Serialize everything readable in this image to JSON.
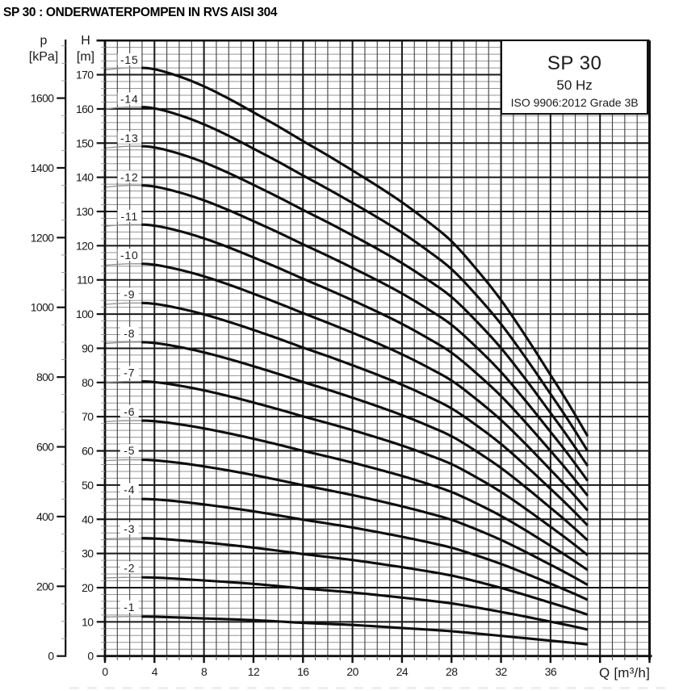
{
  "title": "SP 30 : ONDERWATERPOMPEN IN RVS AISI 304",
  "legend": {
    "model": "SP 30",
    "frequency": "50 Hz",
    "standard": "ISO 9906:2012 Grade 3B"
  },
  "axes": {
    "pressure": {
      "name": "p",
      "unit": "[kPa]",
      "tick_labels": [
        "0",
        "200",
        "400",
        "600",
        "800",
        "1000",
        "1200",
        "1400",
        "1600"
      ],
      "major_step_kpa": 200,
      "minor_step_kpa": 50,
      "max_kpa": 1750
    },
    "head": {
      "name": "H",
      "unit": "[m]",
      "tick_labels": [
        "0",
        "10",
        "20",
        "30",
        "40",
        "50",
        "60",
        "70",
        "80",
        "90",
        "100",
        "110",
        "120",
        "130",
        "140",
        "150",
        "160",
        "170"
      ],
      "major_step_m": 10,
      "minor_step_m": 2,
      "range_m": [
        0,
        180
      ]
    },
    "flow": {
      "name": "Q",
      "unit": "[m³/h]",
      "tick_labels": [
        "0",
        "4",
        "8",
        "12",
        "16",
        "20",
        "24",
        "28",
        "32",
        "36"
      ],
      "major_step": 4,
      "minor_step": 1,
      "range": [
        0,
        44
      ]
    }
  },
  "chart_data": {
    "type": "line",
    "title": "SP 30 pump performance curves, 50 Hz",
    "xlabel": "Q [m³/h]",
    "ylabel_left_outer": "p [kPa]",
    "ylabel_left_inner": "H [m]",
    "xlim": [
      0,
      44
    ],
    "ylim": [
      0,
      180
    ],
    "grid": "minor+major",
    "legend_position": "top-right box",
    "x": [
      0,
      1,
      2,
      3,
      4,
      6,
      8,
      10,
      12,
      14,
      16,
      18,
      20,
      22,
      24,
      26,
      28,
      30,
      32,
      34,
      36,
      37,
      38,
      39
    ],
    "series": [
      {
        "name": "-1",
        "stages": 1,
        "values": [
          11.43,
          11.5,
          11.55,
          11.55,
          11.5,
          11.27,
          11.0,
          10.76,
          10.5,
          10.12,
          9.7,
          9.4,
          9.1,
          8.66,
          8.2,
          7.75,
          7.25,
          6.6,
          5.9,
          5.2,
          4.5,
          4.15,
          3.8,
          3.4
        ]
      },
      {
        "name": "-2",
        "stages": 2,
        "values": [
          22.86,
          22.95,
          23.01,
          23.01,
          22.94,
          22.57,
          22.11,
          21.63,
          21.11,
          20.46,
          19.76,
          19.19,
          18.59,
          17.86,
          17.09,
          16.29,
          15.4,
          14.21,
          12.91,
          11.51,
          10.05,
          9.32,
          8.56,
          7.75
        ]
      },
      {
        "name": "-3",
        "stages": 3,
        "values": [
          34.28,
          34.4,
          34.47,
          34.47,
          34.37,
          33.87,
          33.23,
          32.51,
          31.71,
          30.8,
          29.83,
          28.97,
          28.09,
          27.07,
          25.99,
          24.83,
          23.54,
          21.83,
          19.93,
          17.81,
          15.6,
          14.49,
          13.33,
          12.1
        ]
      },
      {
        "name": "-4",
        "stages": 4,
        "values": [
          45.71,
          45.85,
          45.93,
          45.93,
          45.81,
          45.18,
          44.34,
          43.38,
          42.32,
          41.14,
          39.89,
          38.76,
          37.58,
          36.27,
          34.88,
          33.37,
          31.69,
          29.44,
          26.94,
          24.12,
          21.15,
          19.65,
          18.09,
          16.45
        ]
      },
      {
        "name": "-5",
        "stages": 5,
        "values": [
          57.14,
          57.3,
          57.39,
          57.39,
          57.24,
          56.48,
          55.46,
          54.26,
          52.93,
          51.49,
          49.96,
          48.54,
          47.07,
          45.47,
          43.77,
          41.91,
          39.84,
          37.06,
          33.96,
          30.43,
          26.7,
          24.82,
          22.86,
          20.8
        ]
      },
      {
        "name": "-6",
        "stages": 6,
        "values": [
          68.56,
          68.75,
          68.85,
          68.85,
          68.68,
          67.78,
          66.57,
          65.13,
          63.54,
          61.83,
          60.02,
          58.33,
          56.56,
          54.67,
          52.66,
          50.45,
          47.98,
          44.67,
          40.97,
          36.74,
          32.25,
          29.99,
          27.62,
          25.15
        ]
      },
      {
        "name": "-7",
        "stages": 7,
        "values": [
          79.99,
          80.2,
          80.31,
          80.31,
          80.11,
          79.08,
          77.69,
          76.01,
          74.14,
          72.17,
          70.09,
          68.11,
          66.06,
          63.88,
          61.56,
          58.99,
          56.13,
          52.29,
          47.99,
          43.04,
          37.8,
          35.16,
          32.39,
          29.5
        ]
      },
      {
        "name": "-8",
        "stages": 8,
        "values": [
          91.42,
          91.65,
          91.78,
          91.78,
          91.55,
          90.39,
          88.8,
          86.88,
          84.75,
          82.51,
          80.15,
          77.9,
          75.55,
          73.08,
          70.45,
          67.53,
          64.28,
          59.9,
          55.0,
          49.35,
          43.35,
          40.33,
          37.15,
          33.85
        ]
      },
      {
        "name": "-9",
        "stages": 9,
        "values": [
          102.84,
          103.1,
          103.24,
          103.24,
          102.99,
          101.69,
          99.91,
          97.75,
          95.36,
          92.85,
          90.21,
          87.69,
          85.04,
          82.28,
          79.34,
          76.06,
          72.42,
          67.51,
          62.01,
          55.66,
          48.9,
          45.49,
          41.91,
          38.2
        ]
      },
      {
        "name": "-10",
        "stages": 10,
        "values": [
          114.27,
          114.55,
          114.7,
          114.7,
          114.42,
          112.99,
          111.03,
          108.63,
          105.96,
          103.19,
          100.28,
          97.47,
          94.54,
          91.49,
          88.24,
          84.6,
          80.57,
          75.13,
          69.03,
          61.96,
          54.45,
          50.66,
          46.68,
          42.55
        ]
      },
      {
        "name": "-11",
        "stages": 11,
        "values": [
          125.69,
          126.0,
          126.16,
          126.16,
          125.86,
          124.29,
          122.14,
          119.5,
          116.57,
          113.53,
          110.34,
          107.26,
          104.03,
          100.69,
          97.13,
          93.14,
          88.71,
          82.74,
          76.04,
          68.27,
          60.0,
          55.83,
          51.44,
          46.9
        ]
      },
      {
        "name": "-12",
        "stages": 12,
        "values": [
          137.12,
          137.45,
          137.62,
          137.62,
          137.29,
          135.59,
          133.26,
          130.38,
          127.18,
          123.88,
          120.41,
          117.04,
          113.52,
          109.89,
          106.02,
          101.68,
          96.86,
          90.36,
          83.06,
          74.58,
          65.55,
          61.0,
          56.21,
          51.25
        ]
      },
      {
        "name": "-13",
        "stages": 13,
        "values": [
          148.55,
          148.9,
          149.08,
          149.08,
          148.73,
          146.9,
          144.37,
          141.25,
          137.79,
          134.22,
          130.47,
          126.83,
          123.01,
          119.09,
          114.91,
          110.22,
          105.01,
          97.97,
          90.07,
          80.89,
          71.1,
          66.16,
          60.97,
          55.6
        ]
      },
      {
        "name": "-14",
        "stages": 14,
        "values": [
          159.97,
          160.35,
          160.54,
          160.54,
          160.16,
          158.2,
          155.49,
          152.13,
          148.39,
          144.56,
          140.54,
          136.61,
          132.51,
          128.3,
          123.81,
          118.76,
          113.15,
          105.59,
          97.09,
          87.19,
          76.65,
          71.33,
          65.74,
          59.95
        ]
      },
      {
        "name": "-15",
        "stages": 15,
        "values": [
          171.4,
          171.8,
          172.0,
          172.0,
          171.6,
          169.5,
          166.6,
          163.0,
          159.0,
          154.9,
          150.6,
          146.4,
          142.0,
          137.5,
          132.7,
          127.3,
          121.3,
          113.2,
          104.1,
          93.5,
          82.2,
          76.5,
          70.5,
          64.3
        ]
      }
    ],
    "curve_thick_range_q": [
      2.95,
      39.0
    ],
    "curve_labels": [
      "-1",
      "-2",
      "-3",
      "-4",
      "-5",
      "-6",
      "-7",
      "-8",
      "-9",
      "-10",
      "-11",
      "-12",
      "-13",
      "-14",
      "-15"
    ]
  },
  "colors": {
    "curve": "#0e0e0e",
    "curve_thin": "#8f8f8f",
    "grid_major": "#181818",
    "grid_minor_h": "#949494",
    "grid_minor_v": "#474747",
    "border": "#111111",
    "text": "#1a1a1a",
    "background": "#ffffff"
  }
}
